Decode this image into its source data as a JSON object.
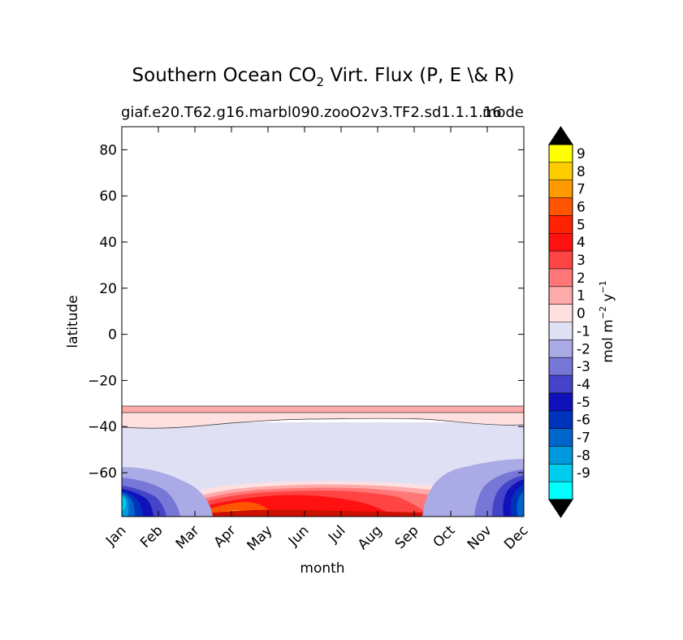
{
  "chart_data": {
    "type": "heatmap",
    "title": "Southern Ocean CO",
    "title_subscript": "2",
    "title_rest": " Virt. Flux (P, E \\& R)",
    "subtitle_left": "giaf.e20.T62.g16.marbl090.zooO2v3.TF2.sd1.1.1.16",
    "subtitle_right": "mode",
    "xlabel": "month",
    "ylabel": "latitude",
    "x_ticks": [
      "Jan",
      "Feb",
      "Mar",
      "Apr",
      "May",
      "Jun",
      "Jul",
      "Aug",
      "Sep",
      "Oct",
      "Nov",
      "Dec"
    ],
    "y_ticks": [
      80,
      60,
      40,
      20,
      0,
      -20,
      -40,
      -60
    ],
    "y_tick_labels": [
      "80",
      "60",
      "40",
      "20",
      "0",
      "−20",
      "−40",
      "−60"
    ],
    "ylim": [
      -79,
      90
    ],
    "colorbar": {
      "label": "mol m",
      "label_sup1": "−2",
      "label_mid": " y",
      "label_sup2": "−1",
      "levels": [
        "9",
        "8",
        "7",
        "6",
        "5",
        "4",
        "3",
        "2",
        "1",
        "0",
        "-1",
        "-2",
        "-3",
        "-4",
        "-5",
        "-6",
        "-7",
        "-8",
        "-9"
      ],
      "colors": [
        "#ffff00",
        "#ffcc00",
        "#ff9900",
        "#ff5500",
        "#ff2200",
        "#ff1111",
        "#ff4444",
        "#ff7777",
        "#ffaaaa",
        "#ffe0e0",
        "#e0e0f4",
        "#aaaae6",
        "#7777d8",
        "#4444c8",
        "#1111bb",
        "#0033bb",
        "#0066cc",
        "#0099dd",
        "#00ccee",
        "#00ffff"
      ],
      "over_color": "#000000",
      "under_color": "#000000"
    }
  }
}
